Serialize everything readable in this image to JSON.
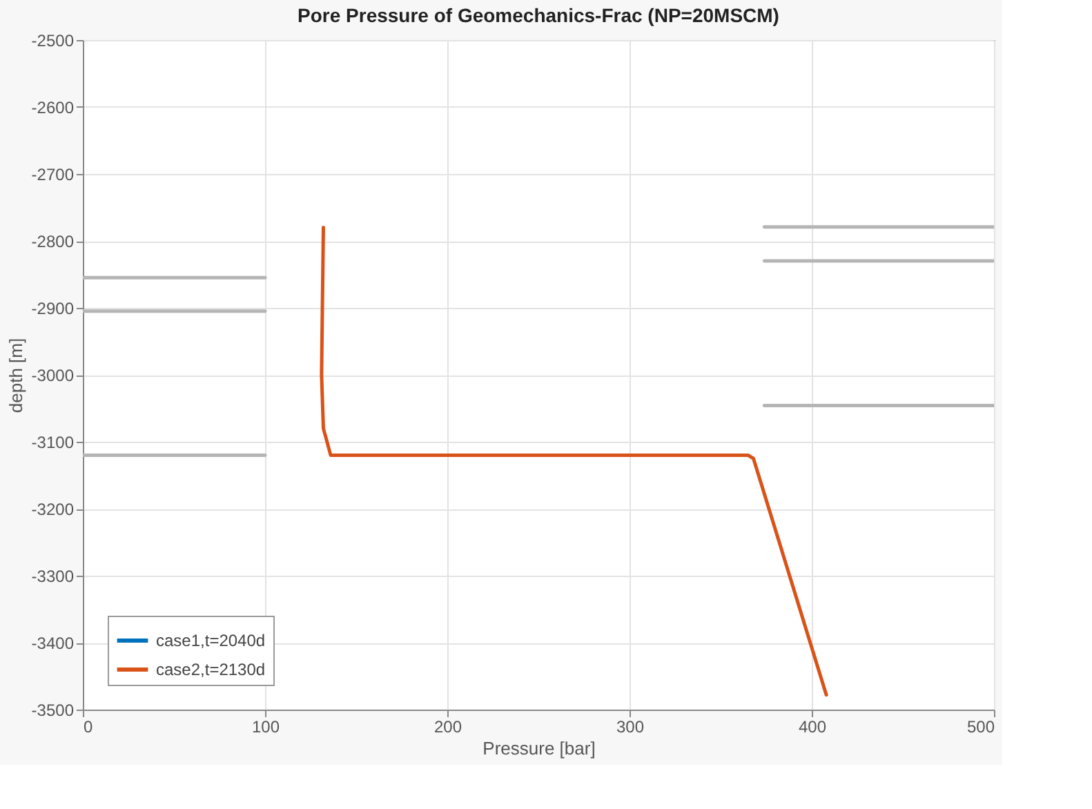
{
  "chart_data": {
    "type": "line",
    "title": "Pore Pressure of Geomechanics-Frac (NP=20MSCM)",
    "xlabel": "Pressure [bar]",
    "ylabel": "depth [m]",
    "xlim": [
      0,
      500
    ],
    "xticks": [
      0,
      100,
      200,
      300,
      400,
      500
    ],
    "ylim": [
      -3500,
      -2500
    ],
    "yticks": [
      -3500,
      -3400,
      -3300,
      -3200,
      -3100,
      -3000,
      -2900,
      -2800,
      -2700,
      -2600,
      -2500
    ],
    "grid": true,
    "legend": "bottom left",
    "line_style": "solid",
    "marker": "none",
    "series": [
      {
        "name": "case1,t=2040d",
        "color": "#0072bd"
      },
      {
        "name": "case2,t=2130d",
        "color": "#d95319",
        "x": [
          132,
          131,
          132,
          136,
          365,
          368,
          408
        ],
        "values": [
          -2780,
          -3000,
          -3080,
          -3120,
          -3120,
          -3125,
          -3478
        ]
      },
      {
        "color": "#b5b5b5",
        "x": [
          0,
          100
        ],
        "values": [
          -2855,
          -2855
        ]
      },
      {
        "color": "#b5b5b5",
        "x": [
          0,
          100
        ],
        "values": [
          -2905,
          -2905
        ]
      },
      {
        "color": "#b5b5b5",
        "x": [
          0,
          100
        ],
        "values": [
          -3120,
          -3120
        ]
      },
      {
        "color": "#b5b5b5",
        "x": [
          374,
          500
        ],
        "values": [
          -2779,
          -2779
        ]
      },
      {
        "color": "#b5b5b5",
        "x": [
          374,
          500
        ],
        "values": [
          -2830,
          -2830
        ]
      },
      {
        "color": "#b5b5b5",
        "x": [
          374,
          500
        ],
        "values": [
          -3046,
          -3046
        ]
      }
    ]
  }
}
